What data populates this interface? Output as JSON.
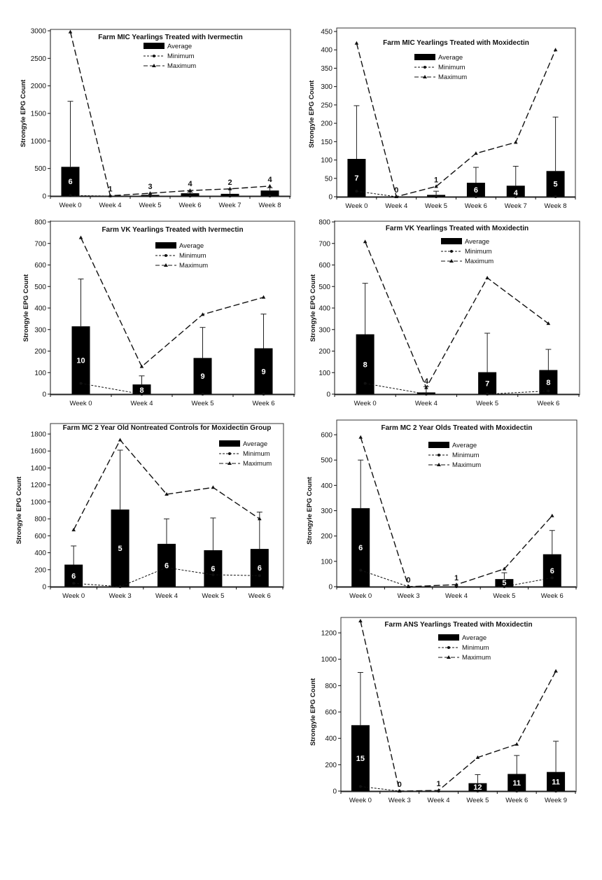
{
  "legend_labels": {
    "average": "Average",
    "minimum": "Minimum",
    "maximum": "Maximum"
  },
  "chart_data": [
    {
      "type": "bar",
      "title": "Farm MIC Yearlings Treated with Ivermectin",
      "ylabel": "Strongyle EPG Count",
      "categories": [
        "Week 0",
        "Week 4",
        "Week 5",
        "Week 6",
        "Week 7",
        "Week 8"
      ],
      "ylim": [
        0,
        3000
      ],
      "yticks": [
        0,
        500,
        1000,
        1500,
        2000,
        2500,
        3000
      ],
      "grid": false,
      "legend_position": "top-center",
      "series": [
        {
          "name": "Average",
          "values": [
            530,
            5,
            20,
            50,
            40,
            100
          ]
        },
        {
          "name": "Minimum",
          "values": [
            10,
            0,
            0,
            0,
            0,
            0
          ]
        },
        {
          "name": "Maximum",
          "values": [
            2980,
            5,
            50,
            100,
            130,
            180
          ]
        }
      ],
      "error_upper": [
        1720,
        null,
        null,
        70,
        130,
        150
      ],
      "bar_labels": [
        "6",
        "1",
        "3",
        "4",
        "2",
        "4"
      ]
    },
    {
      "type": "bar",
      "title": "Farm MIC Yearlings Treated with Moxidectin",
      "ylabel": "Strongyle EPG Count",
      "categories": [
        "Week 0",
        "Week 4",
        "Week 5",
        "Week 6",
        "Week 7",
        "Week 8"
      ],
      "ylim": [
        0,
        450
      ],
      "yticks": [
        0,
        50,
        100,
        150,
        200,
        250,
        300,
        350,
        400,
        450
      ],
      "grid": false,
      "legend_position": "top-center",
      "series": [
        {
          "name": "Average",
          "values": [
            103,
            0,
            5,
            38,
            30,
            70
          ]
        },
        {
          "name": "Minimum",
          "values": [
            15,
            0,
            0,
            0,
            0,
            0
          ]
        },
        {
          "name": "Maximum",
          "values": [
            418,
            0,
            28,
            118,
            148,
            400
          ]
        }
      ],
      "error_upper": [
        248,
        null,
        15,
        80,
        83,
        217
      ],
      "bar_labels": [
        "7",
        "0",
        "1",
        "6",
        "4",
        "5"
      ]
    },
    {
      "type": "bar",
      "title": "Farm VK Yearlings Treated with Ivermectin",
      "ylabel": "Strongyle EPG Count",
      "categories": [
        "Week 0",
        "Week 4",
        "Week 5",
        "Week 6"
      ],
      "ylim": [
        0,
        800
      ],
      "yticks": [
        0,
        100,
        200,
        300,
        400,
        500,
        600,
        700,
        800
      ],
      "grid": false,
      "legend_position": "top-center",
      "series": [
        {
          "name": "Average",
          "values": [
            315,
            45,
            168,
            213
          ]
        },
        {
          "name": "Minimum",
          "values": [
            50,
            0,
            0,
            0
          ]
        },
        {
          "name": "Maximum",
          "values": [
            727,
            128,
            370,
            450
          ]
        }
      ],
      "error_upper": [
        535,
        85,
        310,
        372
      ],
      "bar_labels": [
        "10",
        "8",
        "9",
        "9"
      ]
    },
    {
      "type": "bar",
      "title": "Farm VK Yearlings Treated with Moxidectin",
      "ylabel": "Strongyle EPG Count",
      "categories": [
        "Week 0",
        "Week 4",
        "Week 5",
        "Week 6"
      ],
      "ylim": [
        0,
        800
      ],
      "yticks": [
        0,
        100,
        200,
        300,
        400,
        500,
        600,
        700,
        800
      ],
      "grid": false,
      "legend_position": "top-center",
      "series": [
        {
          "name": "Average",
          "values": [
            278,
            8,
            102,
            112
          ]
        },
        {
          "name": "Minimum",
          "values": [
            50,
            0,
            0,
            15
          ]
        },
        {
          "name": "Maximum",
          "values": [
            708,
            30,
            540,
            328
          ]
        }
      ],
      "error_upper": [
        515,
        35,
        283,
        208
      ],
      "bar_labels": [
        "8",
        "4",
        "7",
        "8"
      ]
    },
    {
      "type": "bar",
      "title": "Farm MC 2 Year Old Nontreated Controls for Moxidectin Group",
      "ylabel": "Strongyle EPG Count",
      "categories": [
        "Week 0",
        "Week 3",
        "Week 4",
        "Week 5",
        "Week 6"
      ],
      "ylim": [
        0,
        1800
      ],
      "yticks": [
        0,
        200,
        400,
        600,
        800,
        1000,
        1200,
        1400,
        1600,
        1800
      ],
      "grid": false,
      "legend_position": "top-right",
      "series": [
        {
          "name": "Average",
          "values": [
            260,
            910,
            505,
            430,
            445
          ]
        },
        {
          "name": "Minimum",
          "values": [
            40,
            0,
            225,
            140,
            130
          ]
        },
        {
          "name": "Maximum",
          "values": [
            670,
            1730,
            1090,
            1170,
            800
          ]
        }
      ],
      "error_upper": [
        480,
        1610,
        800,
        810,
        880
      ],
      "bar_labels": [
        "6",
        "5",
        "6",
        "6",
        "6"
      ]
    },
    {
      "type": "bar",
      "title": "Farm MC 2 Year Olds Treated with Moxidectin",
      "ylabel": "Strongyle EPG Count",
      "categories": [
        "Week 0",
        "Week 3",
        "Week 4",
        "Week 5",
        "Week 6"
      ],
      "ylim": [
        0,
        600
      ],
      "yticks": [
        0,
        100,
        200,
        300,
        400,
        500,
        600
      ],
      "grid": false,
      "legend_position": "top-right",
      "series": [
        {
          "name": "Average",
          "values": [
            310,
            0,
            0,
            30,
            128
          ]
        },
        {
          "name": "Minimum",
          "values": [
            65,
            0,
            0,
            0,
            35
          ]
        },
        {
          "name": "Maximum",
          "values": [
            590,
            0,
            8,
            70,
            280
          ]
        }
      ],
      "error_upper": [
        500,
        null,
        null,
        55,
        222
      ],
      "bar_labels": [
        "6",
        "0",
        "1",
        "5",
        "6"
      ]
    },
    {
      "type": "bar",
      "title": "Farm ANS Yearlings Treated with Moxidectin",
      "ylabel": "Strongyle EPG Count",
      "categories": [
        "Week 0",
        "Week 3",
        "Week 4",
        "Week 5",
        "Week 6",
        "Week 9"
      ],
      "ylim": [
        0,
        1200
      ],
      "yticks": [
        0,
        200,
        400,
        600,
        800,
        1000,
        1200
      ],
      "grid": false,
      "legend_position": "top-center",
      "series": [
        {
          "name": "Average",
          "values": [
            500,
            0,
            0,
            60,
            130,
            145
          ]
        },
        {
          "name": "Minimum",
          "values": [
            35,
            0,
            0,
            0,
            0,
            0
          ]
        },
        {
          "name": "Maximum",
          "values": [
            1290,
            0,
            5,
            255,
            355,
            910
          ]
        }
      ],
      "error_upper": [
        900,
        null,
        null,
        125,
        270,
        378
      ],
      "bar_labels": [
        "15",
        "0",
        "1",
        "12",
        "11",
        "11"
      ]
    }
  ]
}
